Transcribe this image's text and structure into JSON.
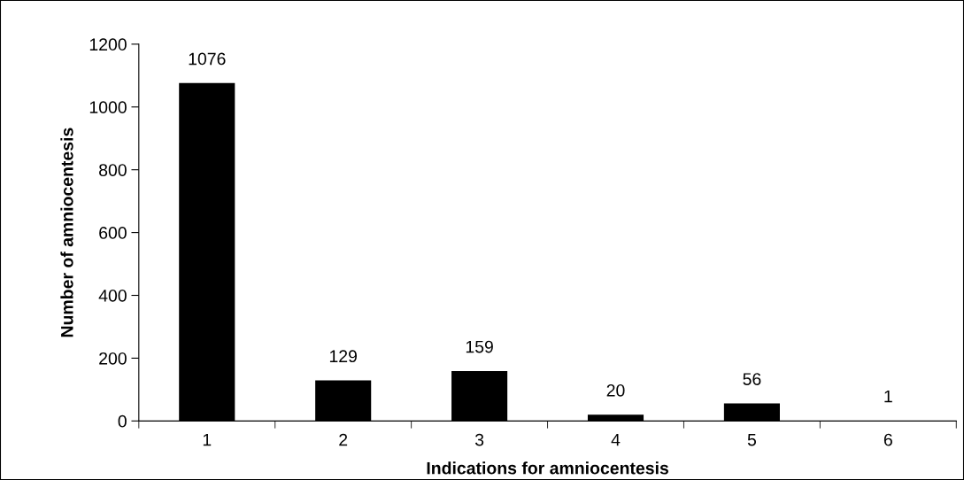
{
  "chart_data": {
    "type": "bar",
    "xlabel": "Indications for amniocentesis",
    "ylabel": "Number of amniocentesis",
    "categories": [
      "1",
      "2",
      "3",
      "4",
      "5",
      "6"
    ],
    "values": [
      1076,
      129,
      159,
      20,
      56,
      1
    ],
    "color": "#000000",
    "ylim": [
      0,
      1200
    ],
    "yticks": [
      0,
      200,
      400,
      600,
      800,
      1000,
      1200
    ],
    "grid": false,
    "data_labels": true
  }
}
